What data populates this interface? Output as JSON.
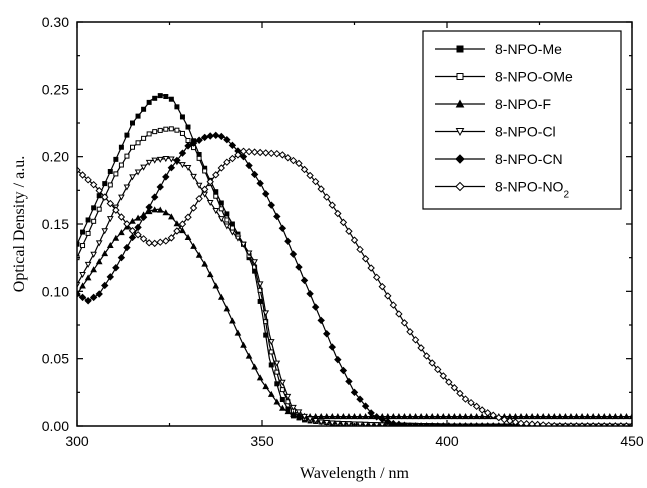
{
  "chart_data": {
    "type": "line",
    "xlabel": "Wavelength / nm",
    "ylabel": "Optical Density / a.u.",
    "xlim": [
      300,
      450
    ],
    "ylim": [
      0.0,
      0.3
    ],
    "xticks": [
      300,
      350,
      400,
      450
    ],
    "yticks": [
      0.0,
      0.05,
      0.1,
      0.15,
      0.2,
      0.25,
      0.3
    ],
    "ytick_labels": [
      "0.00",
      "0.05",
      "0.10",
      "0.15",
      "0.20",
      "0.25",
      "0.30"
    ],
    "grid": false,
    "legend_position": "top-right",
    "series": [
      {
        "name": "8-NPO-Me",
        "marker": "filled-square",
        "x": [
          300,
          305,
          310,
          315,
          320,
          323,
          326,
          330,
          335,
          340,
          345,
          348,
          350,
          352,
          355,
          358,
          362,
          366,
          370,
          380,
          400,
          450
        ],
        "y": [
          0.135,
          0.165,
          0.195,
          0.225,
          0.242,
          0.246,
          0.242,
          0.222,
          0.188,
          0.16,
          0.135,
          0.115,
          0.085,
          0.05,
          0.022,
          0.008,
          0.004,
          0.003,
          0.002,
          0.001,
          0.0,
          0.0
        ]
      },
      {
        "name": "8-NPO-OMe",
        "marker": "open-square",
        "x": [
          300,
          305,
          310,
          315,
          320,
          325,
          328,
          332,
          336,
          340,
          345,
          348,
          350,
          352,
          355,
          358,
          362,
          366,
          370,
          380,
          400,
          450
        ],
        "y": [
          0.125,
          0.155,
          0.185,
          0.207,
          0.218,
          0.221,
          0.219,
          0.205,
          0.18,
          0.155,
          0.135,
          0.118,
          0.095,
          0.06,
          0.03,
          0.012,
          0.005,
          0.003,
          0.002,
          0.001,
          0.0,
          0.0
        ]
      },
      {
        "name": "8-NPO-F",
        "marker": "filled-triangle",
        "x": [
          300,
          305,
          310,
          315,
          320,
          322,
          325,
          330,
          335,
          340,
          345,
          350,
          355,
          358,
          362,
          366,
          370,
          380,
          400,
          450
        ],
        "y": [
          0.098,
          0.118,
          0.138,
          0.152,
          0.16,
          0.161,
          0.157,
          0.14,
          0.118,
          0.09,
          0.06,
          0.033,
          0.014,
          0.009,
          0.007,
          0.007,
          0.007,
          0.007,
          0.007,
          0.007
        ]
      },
      {
        "name": "8-NPO-Cl",
        "marker": "open-triangle-down",
        "x": [
          300,
          305,
          310,
          315,
          320,
          325,
          330,
          335,
          340,
          345,
          348,
          350,
          352,
          355,
          358,
          362,
          366,
          370,
          380,
          400,
          450
        ],
        "y": [
          0.105,
          0.13,
          0.16,
          0.185,
          0.197,
          0.199,
          0.192,
          0.17,
          0.15,
          0.135,
          0.122,
          0.1,
          0.068,
          0.036,
          0.015,
          0.006,
          0.003,
          0.002,
          0.001,
          0.0,
          0.0
        ]
      },
      {
        "name": "8-NPO-CN",
        "marker": "filled-diamond",
        "x": [
          300,
          303,
          306,
          310,
          315,
          320,
          325,
          330,
          335,
          338,
          340,
          345,
          350,
          355,
          360,
          365,
          370,
          375,
          380,
          385,
          390,
          400,
          450
        ],
        "y": [
          0.098,
          0.093,
          0.098,
          0.115,
          0.14,
          0.165,
          0.19,
          0.208,
          0.215,
          0.216,
          0.214,
          0.2,
          0.178,
          0.15,
          0.118,
          0.085,
          0.052,
          0.025,
          0.008,
          0.002,
          0.0,
          0.0,
          0.0
        ]
      },
      {
        "name": "8-NPO-NO2",
        "marker": "open-diamond",
        "x": [
          300,
          305,
          310,
          315,
          320,
          325,
          330,
          335,
          340,
          345,
          350,
          355,
          360,
          365,
          370,
          375,
          380,
          385,
          390,
          395,
          400,
          405,
          410,
          415,
          420,
          425,
          430,
          440,
          450
        ],
        "y": [
          0.19,
          0.178,
          0.162,
          0.145,
          0.135,
          0.138,
          0.155,
          0.178,
          0.195,
          0.204,
          0.203,
          0.202,
          0.195,
          0.18,
          0.16,
          0.138,
          0.115,
          0.092,
          0.07,
          0.05,
          0.034,
          0.02,
          0.011,
          0.005,
          0.002,
          0.001,
          0.0,
          0.0,
          0.0
        ]
      }
    ]
  }
}
